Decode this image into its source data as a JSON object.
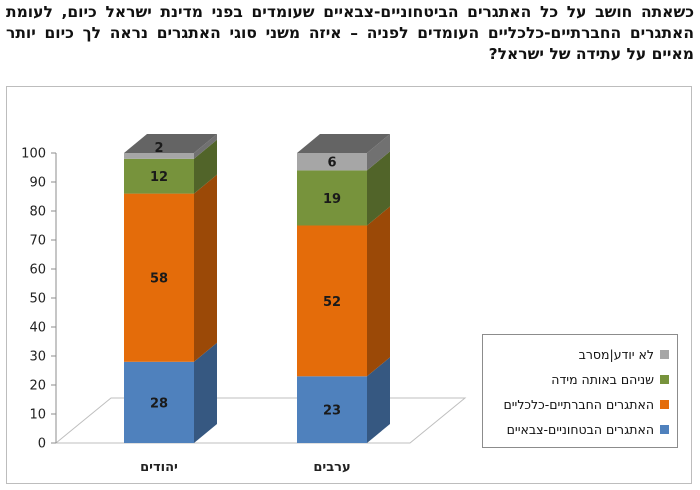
{
  "question": "כשאתה חושב על כל האתגרים הביטחוניים-צבאיים שעומדים בפני מדינת ישראל כיום, לעומת האתגרים החברתיים-כלכליים העומדים לפניה – איזה משני סוגי האתגרים נראה לך כיום יותר מאיים על עתידה של ישראל?",
  "chart_data": {
    "type": "bar",
    "stacked": true,
    "three_d": true,
    "categories": [
      "יהודים",
      "ערבים"
    ],
    "series": [
      {
        "name": "האתגרים הבטחוניים-צבאיים",
        "values": [
          28,
          23
        ],
        "color": "#4f81bd"
      },
      {
        "name": "האתגרים החברתיים-כלכליים",
        "values": [
          58,
          52
        ],
        "color": "#e46c0a"
      },
      {
        "name": "שניהם באותה מידה",
        "values": [
          12,
          19
        ],
        "color": "#77933c"
      },
      {
        "name": "לא יודע|מסרב",
        "values": [
          2,
          6
        ],
        "color": "#a6a6a6"
      }
    ],
    "ylim": [
      0,
      100
    ],
    "yticks": [
      0,
      10,
      20,
      30,
      40,
      50,
      60,
      70,
      80,
      90,
      100
    ],
    "legend_position": "right",
    "grid": false
  }
}
